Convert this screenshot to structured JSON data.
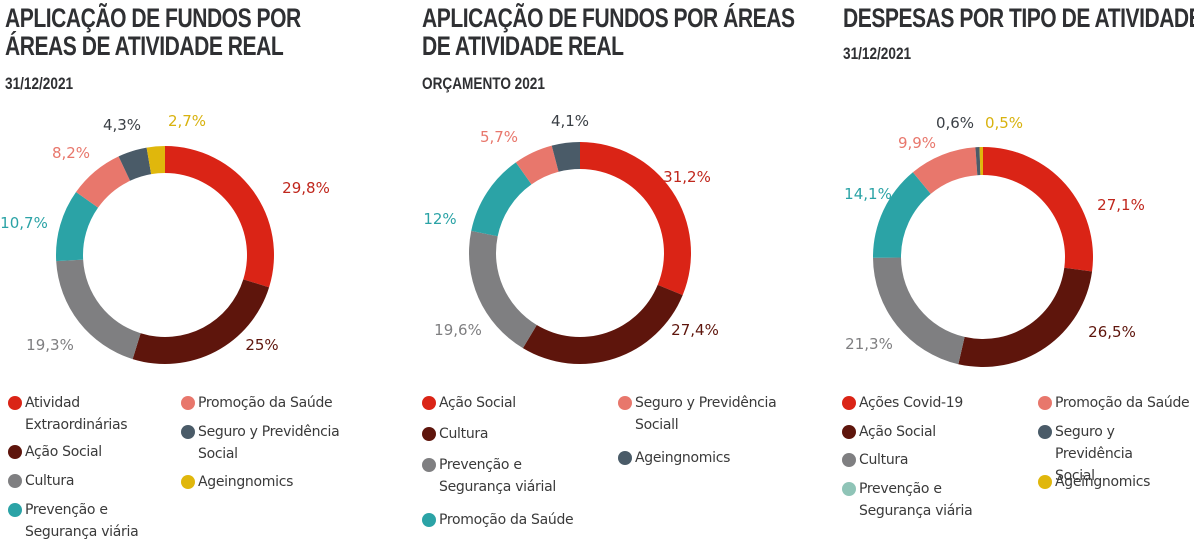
{
  "colors": {
    "red": "#da2416",
    "darkred": "#5e150c",
    "gray": "#7f7f81",
    "teal": "#2ba3a6",
    "salmon": "#e8776c",
    "slate": "#4a5b68",
    "yellow": "#e0b70c",
    "mint": "#8fc4b7"
  },
  "chart_data": [
    {
      "type": "pie",
      "title": "APLICAÇÃO DE FUNDOS POR ÁREAS DE ATIVIDADE REAL",
      "subtitle": "31/12/2021",
      "donut": true,
      "slices": [
        {
          "label": "Atividad Extraordinárias",
          "value": 29.8,
          "display": "29,8%",
          "color": "#da2416",
          "label_color": "#c0271d"
        },
        {
          "label": "Ação Social",
          "value": 25,
          "display": "25%",
          "color": "#5e150c",
          "label_color": "#5e150c"
        },
        {
          "label": "Cultura",
          "value": 19.3,
          "display": "19,3%",
          "color": "#7f7f81",
          "label_color": "#7f7f81"
        },
        {
          "label": "Prevenção e Segurança viária",
          "value": 10.7,
          "display": "10,7%",
          "color": "#2ba3a6",
          "label_color": "#2ba3a6"
        },
        {
          "label": "Promoção da Saúde",
          "value": 8.2,
          "display": "8,2%",
          "color": "#e8776c",
          "label_color": "#e8776c"
        },
        {
          "label": "Seguro y Previdência Social",
          "value": 4.3,
          "display": "4,3%",
          "color": "#4a5b68",
          "label_color": "#3a3f45"
        },
        {
          "label": "Ageingnomics",
          "value": 2.7,
          "display": "2,7%",
          "color": "#e0b70c",
          "label_color": "#d8b20e"
        }
      ],
      "legend": [
        {
          "label": "Atividad\nExtraordinárias",
          "color": "#da2416"
        },
        {
          "label": "Ação Social",
          "color": "#5e150c"
        },
        {
          "label": "Cultura",
          "color": "#7f7f81"
        },
        {
          "label": "Prevenção e\nSegurança viária",
          "color": "#2ba3a6"
        },
        {
          "label": "Promoção da Saúde",
          "color": "#e8776c"
        },
        {
          "label": "Seguro y Previdência\nSocial",
          "color": "#4a5b68"
        },
        {
          "label": "Ageingnomics",
          "color": "#e0b70c"
        }
      ],
      "legend_placement": "bottom"
    },
    {
      "type": "pie",
      "title": "APLICAÇÃO DE FUNDOS POR ÁREAS DE ATIVIDADE REAL",
      "subtitle": "ORÇAMENTO 2021",
      "donut": true,
      "slices": [
        {
          "label": "Ação Social",
          "value": 31.2,
          "display": "31,2%",
          "color": "#da2416",
          "label_color": "#c0271d"
        },
        {
          "label": "Cultura",
          "value": 27.4,
          "display": "27,4%",
          "color": "#5e150c",
          "label_color": "#5e150c"
        },
        {
          "label": "Prevenção e Segurança viárial",
          "value": 19.6,
          "display": "19,6%",
          "color": "#7f7f81",
          "label_color": "#7f7f81"
        },
        {
          "label": "Promoção da Saúde",
          "value": 12,
          "display": "12%",
          "color": "#2ba3a6",
          "label_color": "#2ba3a6"
        },
        {
          "label": "Seguro y Previdência Sociall",
          "value": 5.7,
          "display": "5,7%",
          "color": "#e8776c",
          "label_color": "#e8776c"
        },
        {
          "label": "Ageingnomics",
          "value": 4.1,
          "display": "4,1%",
          "color": "#4a5b68",
          "label_color": "#3a3f45"
        }
      ],
      "legend": [
        {
          "label": "Ação Social",
          "color": "#da2416"
        },
        {
          "label": "Cultura",
          "color": "#5e150c"
        },
        {
          "label": "Prevenção e\nSegurança viárial",
          "color": "#7f7f81"
        },
        {
          "label": "Promoção da Saúde",
          "color": "#2ba3a6"
        },
        {
          "label": "Seguro y Previdência\nSociall",
          "color": "#e8776c"
        },
        {
          "label": "Ageingnomics",
          "color": "#4a5b68"
        }
      ],
      "legend_placement": "bottom"
    },
    {
      "type": "pie",
      "title": "DESPESAS POR TIPO DE ATIVIDADE",
      "subtitle": "31/12/2021",
      "donut": true,
      "slices": [
        {
          "label": "Ações Covid-19",
          "value": 27.1,
          "display": "27,1%",
          "color": "#da2416",
          "label_color": "#c0271d"
        },
        {
          "label": "Ação Social",
          "value": 26.5,
          "display": "26,5%",
          "color": "#5e150c",
          "label_color": "#5e150c"
        },
        {
          "label": "Cultura",
          "value": 21.3,
          "display": "21,3%",
          "color": "#7f7f81",
          "label_color": "#7f7f81"
        },
        {
          "label": "Prevenção e Segurança viária",
          "value": 14.1,
          "display": "14,1%",
          "color": "#2ba3a6",
          "label_color": "#2ba3a6"
        },
        {
          "label": "Promoção da Saúde",
          "value": 9.9,
          "display": "9,9%",
          "color": "#e8776c",
          "label_color": "#e8776c"
        },
        {
          "label": "Seguro y Previdência Social",
          "value": 0.6,
          "display": "0,6%",
          "color": "#4a5b68",
          "label_color": "#3a3f45"
        },
        {
          "label": "Ageingnomics",
          "value": 0.5,
          "display": "0,5%",
          "color": "#e0b70c",
          "label_color": "#d8b20e"
        }
      ],
      "legend": [
        {
          "label": "Ações Covid-19",
          "color": "#da2416"
        },
        {
          "label": "Ação Social",
          "color": "#5e150c"
        },
        {
          "label": "Cultura",
          "color": "#7f7f81"
        },
        {
          "label": "Prevenção e\nSegurança viária",
          "color": "#8fc4b7"
        },
        {
          "label": "Promoção da Saúde",
          "color": "#e8776c"
        },
        {
          "label": "Seguro y Previdência\nSocial",
          "color": "#4a5b68"
        },
        {
          "label": "Ageingnomics",
          "color": "#e0b70c"
        }
      ],
      "legend_placement": "bottom"
    }
  ]
}
